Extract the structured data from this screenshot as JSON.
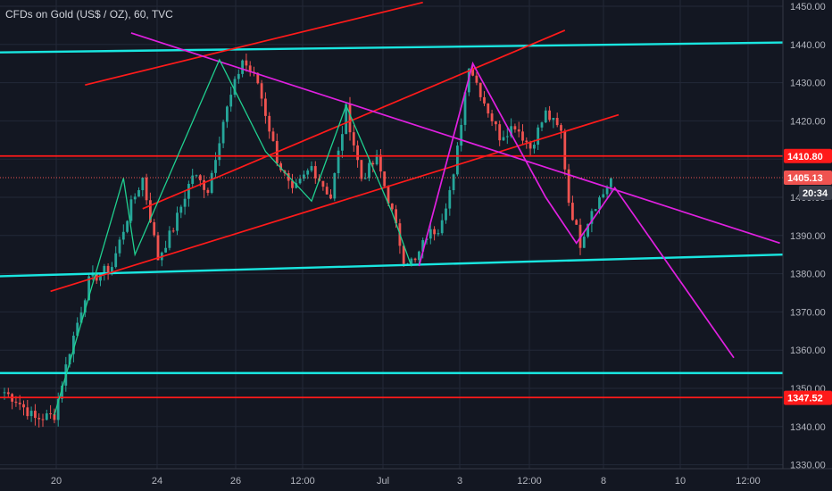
{
  "title": "CFDs on Gold (US$ / OZ), 60, TVC",
  "colors": {
    "background": "#131722",
    "grid": "#232838",
    "candle_up": "#26a69a",
    "candle_down": "#ef5350",
    "cyan": "#19e6e0",
    "red": "#ff1a1a",
    "magenta": "#e020e0",
    "green": "#1fd08f",
    "axis_text": "#b2b5be",
    "price_line": "#ef5350"
  },
  "chart_data": {
    "type": "candlestick",
    "title": "CFDs on Gold (US$ / OZ), 60, TVC",
    "ylim": [
      1328,
      1452
    ],
    "y_ticks": [
      1330,
      1340,
      1350,
      1360,
      1370,
      1380,
      1390,
      1400,
      1410,
      1420,
      1430,
      1440,
      1450
    ],
    "y_tick_labels": [
      "1330.00",
      "1340.00",
      "1350.00",
      "1360.00",
      "1370.00",
      "1380.00",
      "1390.00",
      "1400.00",
      "1410.00",
      "1420.00",
      "1430.00",
      "1440.00",
      "1450.00"
    ],
    "x_ticks": [
      "20",
      "24",
      "26",
      "12:00",
      "Jul",
      "3",
      "12:00",
      "8",
      "10",
      "12:00"
    ],
    "grid": true,
    "price_tags": [
      {
        "value": 1410.8,
        "label": "1410.80",
        "color": "#ff1a1a"
      },
      {
        "value": 1405.13,
        "label": "1405.13",
        "color": "#ef5350"
      },
      {
        "value": 1347.52,
        "label": "1347.52",
        "color": "#ff1a1a"
      }
    ],
    "countdown": "20:34",
    "pivots": [
      [
        0,
        1349
      ],
      [
        3,
        1347
      ],
      [
        8,
        1342
      ],
      [
        13,
        1343
      ],
      [
        17,
        1360
      ],
      [
        22,
        1378
      ],
      [
        28,
        1382
      ],
      [
        33,
        1398
      ],
      [
        36,
        1405
      ],
      [
        40,
        1384
      ],
      [
        44,
        1392
      ],
      [
        49,
        1406
      ],
      [
        53,
        1402
      ],
      [
        57,
        1420
      ],
      [
        62,
        1436
      ],
      [
        66,
        1430
      ],
      [
        71,
        1410
      ],
      [
        75,
        1401
      ],
      [
        80,
        1408
      ],
      [
        85,
        1400
      ],
      [
        89,
        1423
      ],
      [
        93,
        1405
      ],
      [
        97,
        1410
      ],
      [
        101,
        1396
      ],
      [
        104,
        1384
      ],
      [
        107,
        1383
      ],
      [
        110,
        1390
      ],
      [
        113,
        1392
      ],
      [
        117,
        1405
      ],
      [
        121,
        1435
      ],
      [
        125,
        1425
      ],
      [
        129,
        1416
      ],
      [
        133,
        1419
      ],
      [
        137,
        1413
      ],
      [
        141,
        1422
      ],
      [
        145,
        1417
      ],
      [
        147,
        1399
      ],
      [
        150,
        1388
      ],
      [
        153,
        1397
      ],
      [
        156,
        1401
      ],
      [
        158,
        1405
      ]
    ],
    "drawings": [
      {
        "name": "resistance-channel-top",
        "color": "cyan",
        "points": [
          [
            -10,
            1437.8
          ],
          [
            210,
            1440.6
          ]
        ]
      },
      {
        "name": "support-channel-bottom",
        "color": "cyan",
        "points": [
          [
            -10,
            1379.1
          ],
          [
            210,
            1385.2
          ]
        ]
      },
      {
        "name": "support-level-cyan",
        "color": "cyan",
        "points": [
          [
            -10,
            1354.0
          ],
          [
            210,
            1354.0
          ]
        ]
      },
      {
        "name": "resistance-level-red",
        "color": "red",
        "points": [
          [
            -10,
            1410.8
          ],
          [
            210,
            1410.8
          ]
        ]
      },
      {
        "name": "support-level-red",
        "color": "red",
        "points": [
          [
            -10,
            1347.6
          ],
          [
            210,
            1347.6
          ]
        ]
      },
      {
        "name": "upper-channel-line",
        "color": "red",
        "points": [
          [
            21,
            1429.4
          ],
          [
            109,
            1451.0
          ]
        ]
      },
      {
        "name": "middle-channel-line",
        "color": "red",
        "points": [
          [
            36,
            1397.0
          ],
          [
            146,
            1443.7
          ]
        ]
      },
      {
        "name": "lower-channel-line",
        "color": "red",
        "points": [
          [
            12,
            1375.4
          ],
          [
            160,
            1421.6
          ]
        ]
      },
      {
        "name": "descending-trendline",
        "color": "magenta",
        "points": [
          [
            33,
            1443.0
          ],
          [
            202,
            1388.0
          ]
        ]
      },
      {
        "name": "wave-pattern",
        "color": "magenta",
        "points": [
          [
            108,
            1382
          ],
          [
            122,
            1435
          ],
          [
            141,
            1400
          ],
          [
            149,
            1388
          ],
          [
            159,
            1402.5
          ],
          [
            190,
            1358
          ]
        ]
      },
      {
        "name": "zigzag-waves",
        "color": "green",
        "points": [
          [
            13,
            1343
          ],
          [
            31,
            1405
          ],
          [
            34,
            1385
          ],
          [
            56,
            1436
          ],
          [
            68,
            1412
          ],
          [
            80,
            1399
          ],
          [
            89,
            1424
          ],
          [
            101,
            1396
          ],
          [
            106,
            1382
          ]
        ]
      }
    ]
  }
}
